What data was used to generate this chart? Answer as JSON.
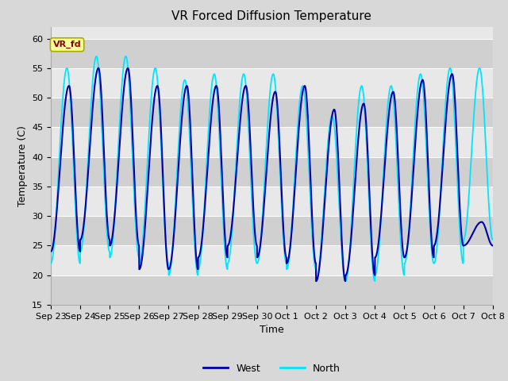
{
  "title": "VR Forced Diffusion Temperature",
  "ylabel": "Temperature (C)",
  "xlabel": "Time",
  "ylim": [
    15,
    62
  ],
  "yticks": [
    15,
    20,
    25,
    30,
    35,
    40,
    45,
    50,
    55,
    60
  ],
  "fig_bg_color": "#d8d8d8",
  "plot_bg_color": "#e8e8e8",
  "band_colors": [
    "#d0d0d0",
    "#e8e8e8"
  ],
  "west_color": "#0000AA",
  "north_color": "#00E5FF",
  "vr_fd_bg": "#FFFF99",
  "vr_fd_text": "#8B0000",
  "vr_fd_edge": "#AAAA00",
  "xtick_labels": [
    "Sep 23",
    "Sep 24",
    "Sep 25",
    "Sep 26",
    "Sep 27",
    "Sep 28",
    "Sep 29",
    "Sep 30",
    "Oct 1",
    "Oct 2",
    "Oct 3",
    "Oct 4",
    "Oct 5",
    "Oct 6",
    "Oct 7",
    "Oct 8"
  ],
  "west_peaks": [
    52,
    55,
    55,
    52,
    52,
    52,
    52,
    51,
    52,
    48,
    49,
    51,
    53,
    54,
    29
  ],
  "west_troughs": [
    24,
    26,
    25,
    21,
    21,
    23,
    25,
    23,
    22,
    19,
    20,
    23,
    23,
    25,
    25
  ],
  "north_peaks": [
    55,
    57,
    57,
    55,
    53,
    54,
    54,
    54,
    52,
    47,
    52,
    52,
    54,
    55,
    55
  ],
  "north_troughs": [
    22,
    24,
    23,
    22,
    20,
    21,
    22,
    22,
    21,
    19,
    19,
    20,
    22,
    22,
    26
  ],
  "legend_west_label": "West",
  "legend_north_label": "North",
  "title_fontsize": 11,
  "axis_fontsize": 9,
  "tick_fontsize": 8
}
